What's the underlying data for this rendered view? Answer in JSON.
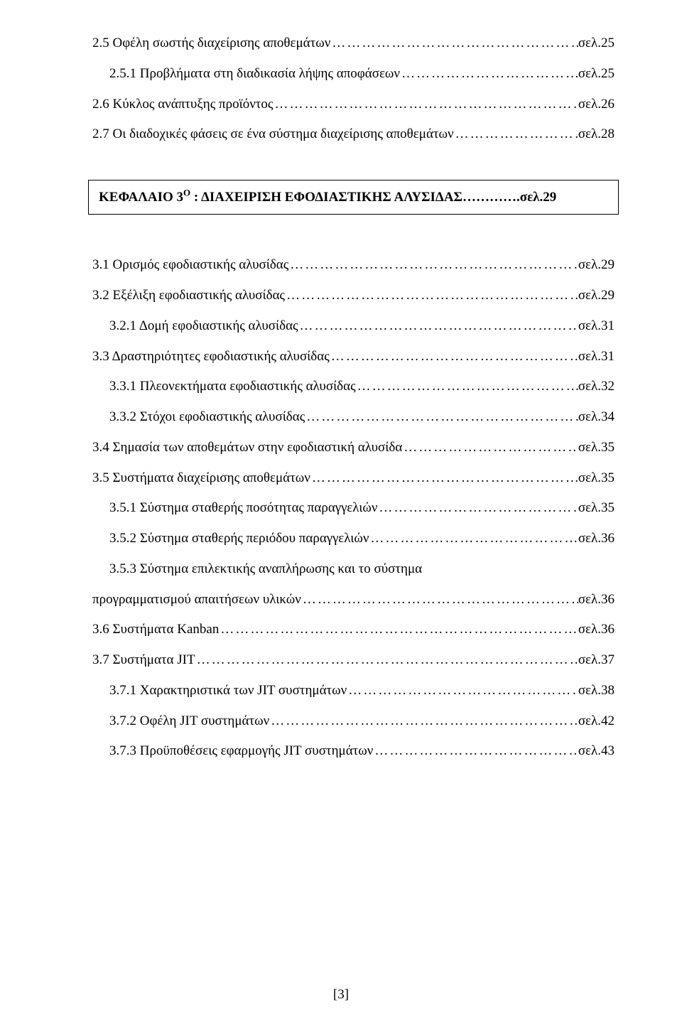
{
  "top_entries": [
    {
      "label": "2.5 Οφέλη σωστής διαχείρισης αποθεμάτων",
      "page": "σελ.25",
      "indent": false
    },
    {
      "label": "2.5.1 Προβλήματα στη διαδικασία λήψης αποφάσεων",
      "page": "σελ.25",
      "indent": true
    },
    {
      "label": "2.6 Κύκλος ανάπτυξης προϊόντος",
      "page": "σελ.26",
      "indent": false
    },
    {
      "label": "2.7 Οι διαδοχικές φάσεις σε ένα σύστημα διαχείρισης αποθεμάτων",
      "page": "σελ.28",
      "indent": false,
      "sep": ".."
    }
  ],
  "chapter": {
    "title_pre": "ΚΕΦΑΛΑΙΟ 3",
    "title_sup": "Ο",
    "title_post": " : ΔΙΑΧΕΙΡΙΣΗ ΕΦΟΔΙΑΣΤΙΚΗΣ ΑΛΥΣΙΔΑΣ",
    "leader": "………….",
    "page": "σελ.29"
  },
  "bottom_entries": [
    {
      "label": "3.1 Ορισμός εφοδιαστικής αλυσίδας",
      "page": "σελ.29",
      "indent": false
    },
    {
      "label": "3.2 Εξέλιξη εφοδιαστικής αλυσίδας",
      "page": "σελ.29",
      "indent": false,
      "sep_end": "."
    },
    {
      "label": "3.2.1 Δομή εφοδιαστικής αλυσίδας",
      "page": "σελ.31",
      "indent": true,
      "sep_end": "..."
    },
    {
      "label": "3.3 Δραστηριότητες εφοδιαστικής αλυσίδας",
      "page": "σελ.31",
      "indent": false
    },
    {
      "label": "3.3.1 Πλεονεκτήματα εφοδιαστικής αλυσίδας",
      "page": "σελ.32",
      "indent": true,
      "sep_end": ".."
    },
    {
      "label": "3.3.2 Στόχοι εφοδιαστικής αλυσίδας",
      "page": "σελ.34",
      "indent": true,
      "sep_end": "."
    },
    {
      "label": "3.4 Σημασία των αποθεμάτων στην εφοδιαστική αλυσίδα",
      "page": "σελ.35",
      "indent": false,
      "sep_end": ".."
    },
    {
      "label": "3.5 Συστήματα διαχείρισης αποθεμάτων",
      "page": "σελ.35",
      "indent": false,
      "sep_end": ".."
    },
    {
      "label": "3.5.1 Σύστημα σταθερής ποσότητας παραγγελιών",
      "page": "σελ.35",
      "indent": true
    },
    {
      "label": "3.5.2 Σύστημα σταθερής περιόδου παραγγελιών",
      "page": "σελ.36",
      "indent": true,
      "sep_end": ".."
    },
    {
      "label": "3.5.3 Σύστημα επιλεκτικής αναπλήρωσης και το σύστημα",
      "page": "",
      "indent": true,
      "no_leader": true
    },
    {
      "label": "προγραμματισμού   απαιτήσεων υλικών",
      "page": "σελ.36",
      "indent": false,
      "sep_end": ".."
    },
    {
      "label": "3.6 Συστήματα Kanban",
      "page": "σελ.36",
      "indent": false
    },
    {
      "label": "3.7 Συστήματα JIT",
      "page": "σελ.37",
      "indent": false,
      "sep_end": "..."
    },
    {
      "label": "3.7.1 Χαρακτηριστικά των JIT συστημάτων",
      "page": "σελ.38",
      "indent": true,
      "sep_end": "."
    },
    {
      "label": "3.7.2 Οφέλη JIT συστημάτων",
      "page": "σελ.42",
      "indent": true,
      "sep_end": "..."
    },
    {
      "label": "3.7.3 Προϋποθέσεις εφαρμογής JIT συστημάτων",
      "page": "σελ.43",
      "indent": true,
      "sep_end": "."
    }
  ],
  "pagenum": "[3]"
}
